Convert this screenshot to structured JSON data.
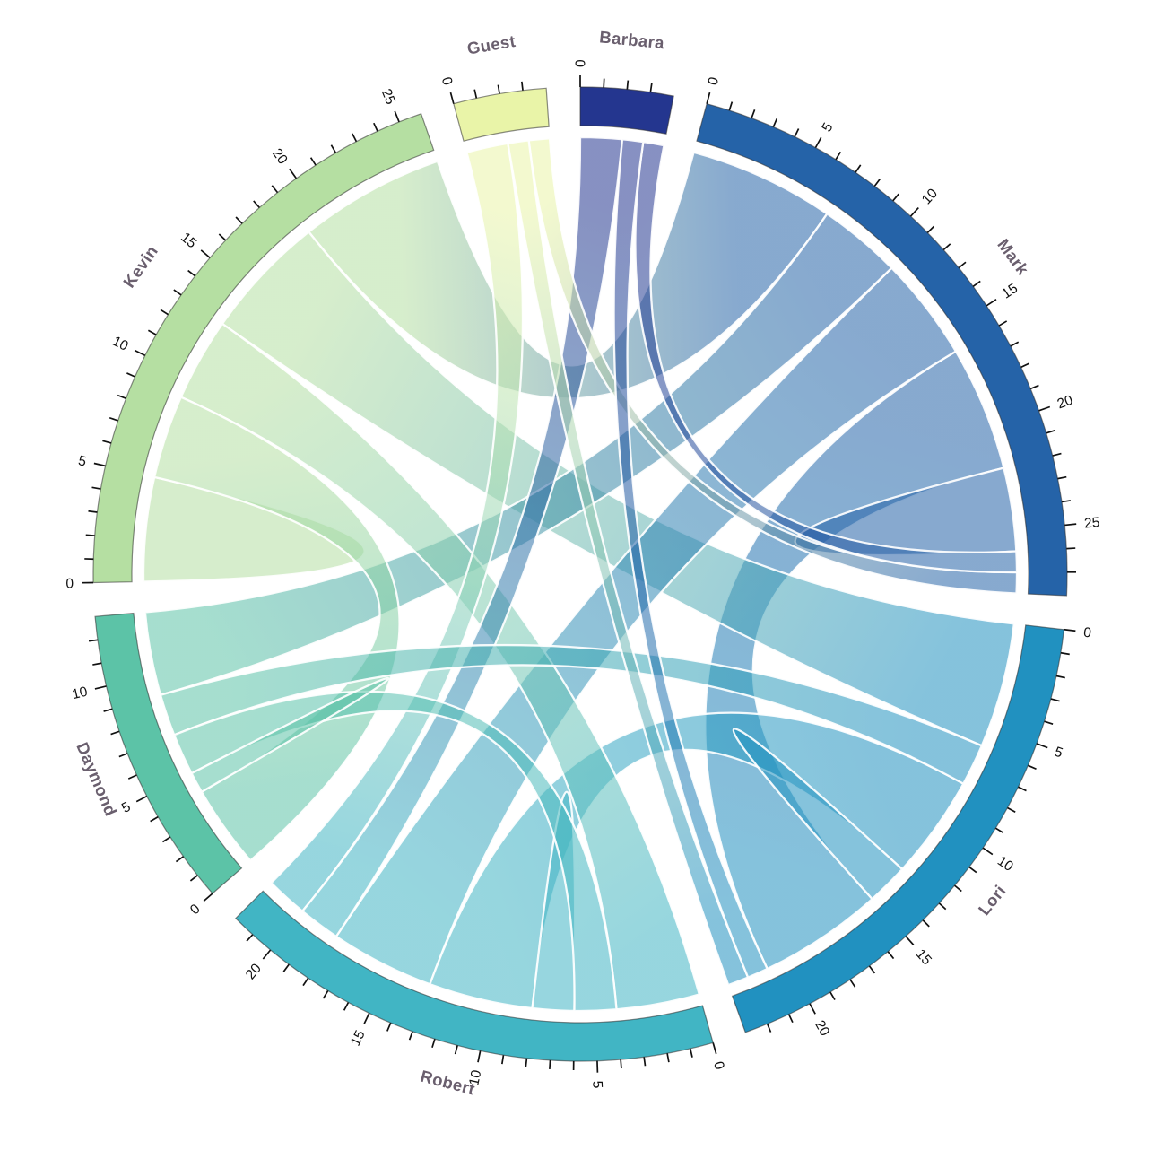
{
  "figure": {
    "background": "#ffffff"
  },
  "chart_data": {
    "type": "chord",
    "title": "",
    "legend_position": "none",
    "grid": false,
    "tick_step": 1,
    "tick_label_step": 5,
    "ribbon_opacity": 0.55,
    "label_color": "#6a5f6e",
    "tick_color": "#111111",
    "arc_outline": "rgba(45,45,45,0.55)",
    "ribbon_border": "#ffffff",
    "groups": [
      {
        "name": "Guest",
        "color": "#e9f4a8",
        "total": 4
      },
      {
        "name": "Barbara",
        "color": "#24368f",
        "total": 4
      },
      {
        "name": "Mark",
        "color": "#2563a8",
        "total": 28
      },
      {
        "name": "Lori",
        "color": "#2191c0",
        "total": 23
      },
      {
        "name": "Robert",
        "color": "#41b5c4",
        "total": 22
      },
      {
        "name": "Daymond",
        "color": "#5cc3a7",
        "total": 13
      },
      {
        "name": "Kevin",
        "color": "#b5dfa2",
        "total": 26
      }
    ],
    "matrix": [
      [
        0,
        0,
        1,
        1,
        2,
        0,
        0
      ],
      [
        0,
        0,
        1,
        1,
        2,
        0,
        0
      ],
      [
        1,
        1,
        4,
        6,
        5,
        4,
        7
      ],
      [
        1,
        1,
        6,
        2,
        5,
        2,
        6
      ],
      [
        2,
        2,
        5,
        5,
        2,
        2,
        4
      ],
      [
        0,
        0,
        4,
        2,
        2,
        1,
        4
      ],
      [
        0,
        0,
        7,
        6,
        4,
        4,
        5
      ]
    ],
    "tick_labels_shown": {
      "Guest": [
        0
      ],
      "Barbara": [
        0
      ],
      "Mark": [
        0,
        5,
        10,
        15,
        20,
        25
      ],
      "Lori": [
        0,
        5,
        10,
        15,
        20
      ],
      "Robert": [
        0,
        5,
        10,
        15,
        20
      ],
      "Daymond": [
        0,
        5,
        10
      ],
      "Kevin": [
        0,
        5,
        10,
        15,
        20,
        25
      ]
    }
  }
}
